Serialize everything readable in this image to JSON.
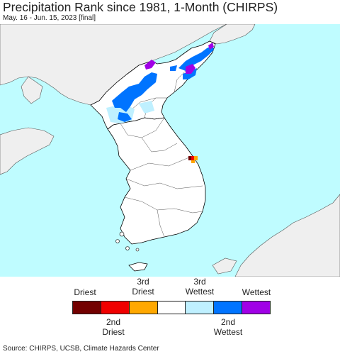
{
  "title": "Precipitation Rank since 1981, 1-Month (CHIRPS)",
  "subtitle": "May. 16 - Jun. 15, 2023 [final]",
  "colors": {
    "ocean": "#bffcff",
    "land": "#ffffff",
    "neighbor_land": "#efefef",
    "border": "#000000"
  },
  "legend": {
    "top_labels": [
      {
        "line1": "Driest",
        "line2": ""
      },
      {
        "line1": "3rd",
        "line2": "Driest"
      },
      {
        "line1": "3rd",
        "line2": "Wettest"
      },
      {
        "line1": "Wettest",
        "line2": ""
      }
    ],
    "bottom_labels": [
      {
        "line1": "2nd",
        "line2": "Driest"
      },
      {
        "line1": "2nd",
        "line2": "Wettest"
      }
    ],
    "colors": [
      "#730000",
      "#f00000",
      "#ffa800",
      "#ffffff",
      "#bff0ff",
      "#0074ff",
      "#a000e6"
    ]
  },
  "source": "Source: CHIRPS, UCSB, Climate Hazards Center"
}
